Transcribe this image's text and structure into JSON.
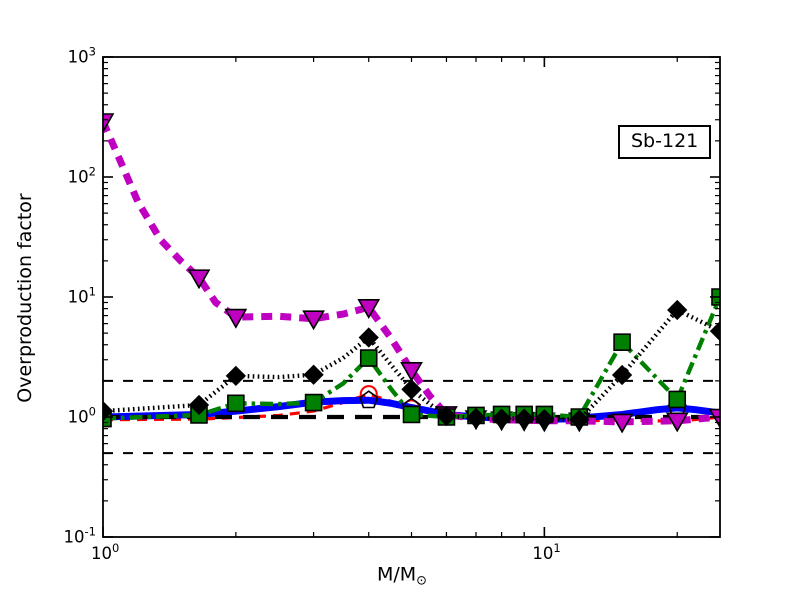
{
  "figure": {
    "background": "#ffffff",
    "frame_color": "#000000"
  },
  "chart_data": {
    "type": "line",
    "label_box": "Sb-121",
    "ylabel": "Overproduction factor",
    "xlabel_main": "M/M",
    "xlabel_sub": "⊙",
    "x_scale": "log",
    "y_scale": "log",
    "xlim": [
      1,
      25
    ],
    "ylim": [
      0.1,
      1000
    ],
    "grid": "off",
    "legend": "none",
    "x_major_ticks": [
      {
        "value": 1,
        "base": "10",
        "exp": "0"
      },
      {
        "value": 10,
        "base": "10",
        "exp": "1"
      }
    ],
    "x_minor_ticks": [
      2,
      3,
      4,
      5,
      6,
      7,
      8,
      9,
      20
    ],
    "y_major_ticks": [
      {
        "value": 1000,
        "base": "10",
        "exp": "3"
      },
      {
        "value": 100,
        "base": "10",
        "exp": "2"
      },
      {
        "value": 10,
        "base": "10",
        "exp": "1"
      },
      {
        "value": 1,
        "base": "10",
        "exp": "0"
      },
      {
        "value": 0.1,
        "base": "10",
        "exp": "-1"
      }
    ],
    "reference_lines": [
      {
        "y": 2,
        "color": "#000000",
        "style": "thin-dashed",
        "width": 2,
        "dash": "10 10"
      },
      {
        "y": 0.5,
        "color": "#000000",
        "style": "thin-dashed",
        "width": 2,
        "dash": "10 10"
      },
      {
        "y": 1,
        "color": "#000000",
        "style": "thick-dashed",
        "width": 4.2,
        "dash": "17 11"
      }
    ],
    "series": [
      {
        "name": "red-dashed-circles",
        "color": "#ff0000",
        "line_style": "dashed",
        "dash": "10 7",
        "line_width": 3.2,
        "marker": {
          "shape": "circle",
          "filled": false,
          "edge": "#ff0000",
          "size": 8
        },
        "points": [
          [
            1,
            0.95
          ],
          [
            1.65,
            0.96
          ],
          [
            2,
            0.99
          ],
          [
            2.5,
            1.03
          ],
          [
            3,
            1.12
          ],
          [
            3.5,
            1.32
          ],
          [
            4,
            1.55
          ],
          [
            4.5,
            1.35
          ],
          [
            5,
            1.18
          ],
          [
            5.5,
            1.08
          ],
          [
            6,
            1.0
          ],
          [
            7,
            0.97
          ],
          [
            8,
            0.95
          ],
          [
            9,
            0.94
          ],
          [
            10,
            0.93
          ],
          [
            12,
            0.93
          ],
          [
            15,
            0.94
          ],
          [
            20,
            0.92
          ],
          [
            25,
            1.0
          ]
        ],
        "marker_points": [
          [
            4,
            1.55
          ],
          [
            5,
            1.18
          ]
        ]
      },
      {
        "name": "blue-solid-pentagons",
        "color": "#0000ff",
        "line_style": "solid",
        "dash": "",
        "line_width": 7,
        "marker": {
          "shape": "pentagon",
          "filled": false,
          "edge": "#000000",
          "size": 9
        },
        "points": [
          [
            1,
            1.0
          ],
          [
            1.65,
            1.05
          ],
          [
            2,
            1.12
          ],
          [
            2.5,
            1.22
          ],
          [
            3,
            1.33
          ],
          [
            3.5,
            1.37
          ],
          [
            4,
            1.38
          ],
          [
            4.5,
            1.3
          ],
          [
            5,
            1.2
          ],
          [
            5.5,
            1.12
          ],
          [
            6,
            1.05
          ],
          [
            7,
            1.0
          ],
          [
            8,
            0.98
          ],
          [
            9,
            0.96
          ],
          [
            10,
            0.95
          ],
          [
            12,
            0.98
          ],
          [
            15,
            1.05
          ],
          [
            18,
            1.15
          ],
          [
            20,
            1.19
          ],
          [
            22,
            1.15
          ],
          [
            25,
            1.08
          ]
        ],
        "marker_points": [
          [
            4,
            1.38
          ],
          [
            5,
            1.2
          ],
          [
            20,
            1.19
          ]
        ]
      },
      {
        "name": "magenta-dashed-triangles",
        "color": "#c000c0",
        "line_style": "dashed",
        "dash": "11 8",
        "line_width": 7,
        "marker": {
          "shape": "triangle-down",
          "filled": true,
          "edge": "#000000",
          "size": 10
        },
        "points": [
          [
            1,
            290
          ],
          [
            1.1,
            130
          ],
          [
            1.2,
            62
          ],
          [
            1.35,
            30
          ],
          [
            1.5,
            20
          ],
          [
            1.65,
            14.5
          ],
          [
            1.8,
            9
          ],
          [
            2,
            6.8
          ],
          [
            2.5,
            6.9
          ],
          [
            3,
            6.6
          ],
          [
            3.5,
            7.2
          ],
          [
            4,
            8.2
          ],
          [
            4.5,
            4.5
          ],
          [
            5,
            2.45
          ],
          [
            5.5,
            1.5
          ],
          [
            6,
            1.05
          ],
          [
            7,
            0.97
          ],
          [
            8,
            0.95
          ],
          [
            9,
            0.94
          ],
          [
            10,
            0.93
          ],
          [
            12,
            0.93
          ],
          [
            15,
            0.91
          ],
          [
            20,
            0.93
          ],
          [
            25,
            1.0
          ]
        ],
        "marker_points": [
          [
            1,
            290
          ],
          [
            1.65,
            14.5
          ],
          [
            2,
            6.8
          ],
          [
            3,
            6.6
          ],
          [
            4,
            8.2
          ],
          [
            5,
            2.45
          ],
          [
            6,
            1.05
          ],
          [
            7,
            0.97
          ],
          [
            8,
            0.95
          ],
          [
            9,
            0.94
          ],
          [
            10,
            0.93
          ],
          [
            12,
            0.93
          ],
          [
            15,
            0.91
          ],
          [
            20,
            0.93
          ],
          [
            25,
            1.0
          ]
        ]
      },
      {
        "name": "green-dashdot-squares",
        "color": "#008000",
        "line_style": "dash-dot",
        "dash": "13 5 3.5 5",
        "line_width": 4.4,
        "marker": {
          "shape": "square",
          "filled": true,
          "edge": "#000000",
          "size": 8
        },
        "points": [
          [
            1,
            0.97
          ],
          [
            1.65,
            1.04
          ],
          [
            2,
            1.3
          ],
          [
            2.5,
            1.28
          ],
          [
            3,
            1.32
          ],
          [
            3.5,
            1.9
          ],
          [
            4,
            3.1
          ],
          [
            4.5,
            1.7
          ],
          [
            5,
            1.05
          ],
          [
            6,
            1.0
          ],
          [
            7,
            1.03
          ],
          [
            8,
            1.05
          ],
          [
            9,
            1.05
          ],
          [
            10,
            1.05
          ],
          [
            12,
            1.0
          ],
          [
            15,
            4.2
          ],
          [
            20,
            1.4
          ],
          [
            25,
            10.0
          ]
        ],
        "marker_points": [
          [
            1,
            0.97
          ],
          [
            1.65,
            1.04
          ],
          [
            2,
            1.3
          ],
          [
            3,
            1.32
          ],
          [
            4,
            3.1
          ],
          [
            5,
            1.05
          ],
          [
            6,
            1.0
          ],
          [
            7,
            1.03
          ],
          [
            8,
            1.05
          ],
          [
            9,
            1.05
          ],
          [
            10,
            1.05
          ],
          [
            12,
            1.0
          ],
          [
            15,
            4.2
          ],
          [
            20,
            1.4
          ],
          [
            25,
            10.0
          ]
        ]
      },
      {
        "name": "black-dotted-diamonds",
        "color": "#000000",
        "line_style": "densely-dotted",
        "dash": "1.6 3.4",
        "line_width": 4.4,
        "marker": {
          "shape": "diamond",
          "filled": true,
          "edge": "#000000",
          "size": 9
        },
        "points": [
          [
            1,
            1.12
          ],
          [
            1.65,
            1.26
          ],
          [
            2,
            2.2
          ],
          [
            2.5,
            2.15
          ],
          [
            3,
            2.25
          ],
          [
            3.5,
            3.1
          ],
          [
            4,
            4.6
          ],
          [
            4.5,
            2.7
          ],
          [
            5,
            1.7
          ],
          [
            5.5,
            1.28
          ],
          [
            6,
            1.02
          ],
          [
            7,
            0.98
          ],
          [
            8,
            0.97
          ],
          [
            9,
            0.97
          ],
          [
            10,
            0.96
          ],
          [
            12,
            0.95
          ],
          [
            15,
            2.24
          ],
          [
            20,
            7.8
          ],
          [
            25,
            5.2
          ]
        ],
        "marker_points": [
          [
            1,
            1.12
          ],
          [
            1.65,
            1.26
          ],
          [
            2,
            2.2
          ],
          [
            3,
            2.25
          ],
          [
            4,
            4.6
          ],
          [
            5,
            1.7
          ],
          [
            6,
            1.02
          ],
          [
            7,
            0.98
          ],
          [
            8,
            0.97
          ],
          [
            9,
            0.97
          ],
          [
            10,
            0.96
          ],
          [
            12,
            0.95
          ],
          [
            15,
            2.24
          ],
          [
            20,
            7.8
          ],
          [
            25,
            5.2
          ]
        ]
      }
    ]
  }
}
